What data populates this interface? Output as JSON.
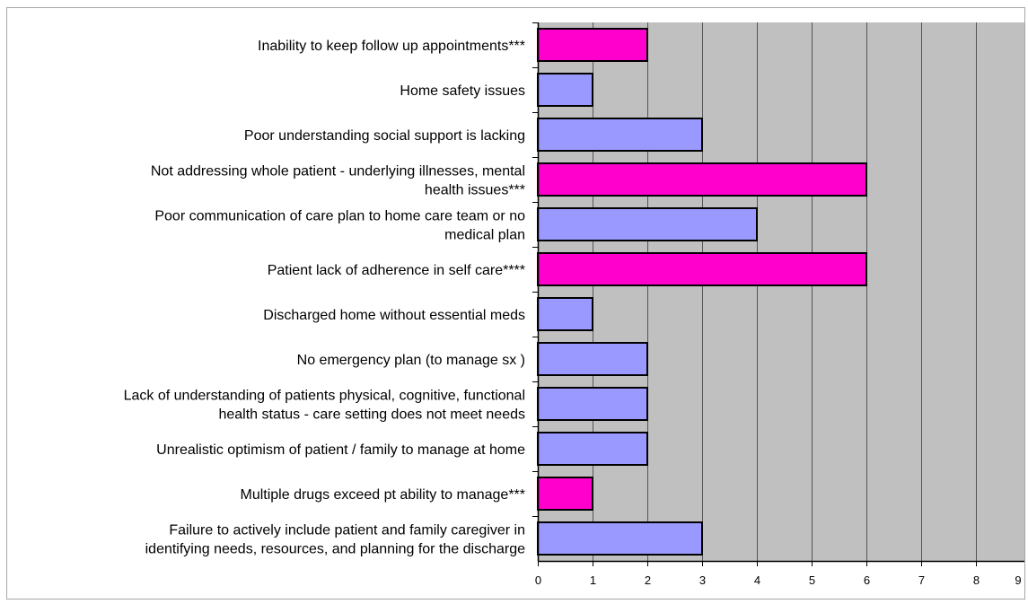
{
  "chart_data": {
    "type": "bar",
    "orientation": "horizontal",
    "categories": [
      "Inability to keep follow up appointments***",
      "Home safety issues",
      "Poor understanding social support is lacking",
      "Not addressing whole patient - underlying illnesses, mental health issues***",
      "Poor communication of care plan to home care team or no medical plan",
      "Patient lack of adherence in self care****",
      "Discharged home without essential meds",
      "No emergency plan (to manage sx )",
      "Lack of understanding of patients physical, cognitive, functional health status - care  setting does not meet needs",
      "Unrealistic optimism of patient / family to manage at home",
      "Multiple drugs exceed pt ability to manage***",
      "Failure to actively include patient and family caregiver in identifying needs, resources, and planning for the discharge"
    ],
    "category_label_lines": [
      [
        "Inability to keep follow up appointments***"
      ],
      [
        "Home safety issues"
      ],
      [
        "Poor understanding social support is lacking"
      ],
      [
        "Not addressing whole patient - underlying illnesses, mental",
        "health issues***"
      ],
      [
        "Poor communication of care plan to home care team or no",
        "medical plan"
      ],
      [
        "Patient lack of adherence in self care****"
      ],
      [
        "Discharged home without essential meds"
      ],
      [
        "No emergency plan (to manage sx )"
      ],
      [
        "Lack of understanding of patients physical, cognitive, functional",
        "health status - care  setting does not meet needs"
      ],
      [
        "Unrealistic optimism of patient / family to manage at home"
      ],
      [
        "Multiple drugs exceed pt ability to manage***"
      ],
      [
        "Failure to actively include patient and family caregiver in",
        "identifying needs, resources, and planning for the discharge"
      ]
    ],
    "values": [
      2,
      1,
      3,
      6,
      4,
      6,
      1,
      2,
      2,
      2,
      1,
      3
    ],
    "highlighted": [
      true,
      false,
      false,
      true,
      false,
      true,
      false,
      false,
      false,
      false,
      true,
      false
    ],
    "colors": {
      "highlight": "#ff00cc",
      "normal": "#9999ff",
      "plot_background": "#c0c0c0",
      "gridline": "#555555"
    },
    "xlim": [
      0,
      9
    ],
    "xticks": [
      "0",
      "1",
      "2",
      "3",
      "4",
      "5",
      "6",
      "7",
      "8",
      "9"
    ],
    "grid": "vertical",
    "legend": "none"
  }
}
